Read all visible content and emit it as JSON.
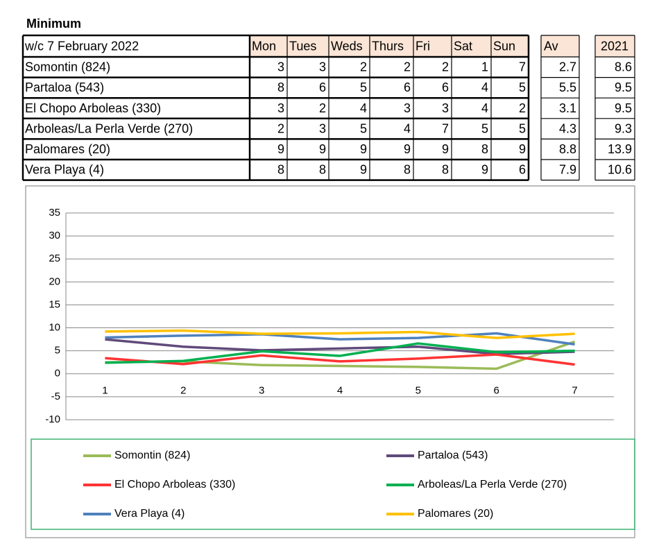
{
  "table": {
    "title": "Minimum",
    "header": [
      "w/c 7 February 2022",
      "Mon",
      "Tues",
      "Weds",
      "Thurs",
      "Fri",
      "Sat",
      "Sun"
    ],
    "av_header": "Av",
    "prev_header": "2021",
    "rows": [
      {
        "name": "Somontin (824)",
        "values": [
          3,
          3,
          2,
          2,
          2,
          1,
          7
        ],
        "av": 2.7,
        "prev": 8.6
      },
      {
        "name": "Partaloa (543)",
        "values": [
          8,
          6,
          5,
          6,
          6,
          4,
          5
        ],
        "av": 5.5,
        "prev": 9.5
      },
      {
        "name": "El Chopo Arboleas (330)",
        "values": [
          3,
          2,
          4,
          3,
          3,
          4,
          2
        ],
        "av": 3.1,
        "prev": 9.5
      },
      {
        "name": "Arboleas/La Perla Verde (270)",
        "values": [
          2,
          3,
          5,
          4,
          7,
          5,
          5
        ],
        "av": 4.3,
        "prev": 9.3
      },
      {
        "name": "Palomares (20)",
        "values": [
          9,
          9,
          9,
          9,
          9,
          8,
          9
        ],
        "av": 8.8,
        "prev": 13.9
      },
      {
        "name": "Vera Playa (4)",
        "values": [
          8,
          8,
          9,
          8,
          8,
          9,
          6
        ],
        "av": 7.9,
        "prev": 10.6
      }
    ]
  },
  "chart_data": {
    "type": "line",
    "categories": [
      "1",
      "2",
      "3",
      "4",
      "5",
      "6",
      "7"
    ],
    "ylim": [
      -10,
      35
    ],
    "yticks": [
      -10,
      -5,
      0,
      5,
      10,
      15,
      20,
      25,
      30,
      35
    ],
    "grid": true,
    "series": [
      {
        "name": "Somontin (824)",
        "color": "#9bbb59",
        "values": [
          2.5,
          2.7,
          1.9,
          1.7,
          1.5,
          1.1,
          7
        ]
      },
      {
        "name": "Partaloa (543)",
        "color": "#604a7b",
        "values": [
          7.5,
          5.9,
          5.1,
          5.5,
          5.9,
          4.3,
          4.8
        ]
      },
      {
        "name": "El Chopo Arboleas (330)",
        "color": "#ff3333",
        "values": [
          3.4,
          2.1,
          4.0,
          2.7,
          3.3,
          4.2,
          2.0
        ]
      },
      {
        "name": "Arboleas/La Perla Verde (270)",
        "color": "#00b050",
        "values": [
          2.4,
          2.8,
          4.9,
          3.9,
          6.6,
          4.7,
          5.0
        ]
      },
      {
        "name": "Vera Playa (4)",
        "color": "#4f81bd",
        "values": [
          7.9,
          8.3,
          8.6,
          7.5,
          7.8,
          8.8,
          6.4
        ]
      },
      {
        "name": "Palomares (20)",
        "color": "#ffc000",
        "values": [
          9.2,
          9.4,
          8.7,
          8.8,
          9.1,
          7.8,
          8.7
        ]
      }
    ]
  }
}
